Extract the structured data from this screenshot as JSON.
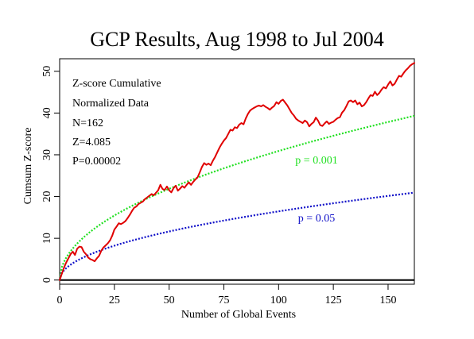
{
  "chart_data": {
    "type": "line",
    "title": "GCP Results, Aug 1998 to Jul 2004",
    "xlabel": "Number of Global Events",
    "ylabel": "Cumsum Z-score",
    "xlim": [
      0,
      162
    ],
    "ylim": [
      -1,
      53
    ],
    "x_ticks": [
      0,
      25,
      50,
      75,
      100,
      125,
      150
    ],
    "y_ticks": [
      0,
      10,
      20,
      30,
      40,
      50
    ],
    "grid": false,
    "annotations": [
      "Z-score Cumulative",
      "Normalized Data",
      "N=162",
      "Z=4.085",
      "P=0.00002"
    ],
    "series": [
      {
        "name": "",
        "color": "#e00000",
        "points": [
          [
            0,
            0
          ],
          [
            1,
            1.5
          ],
          [
            2,
            3
          ],
          [
            3,
            4.2
          ],
          [
            4,
            5.2
          ],
          [
            5,
            6.2
          ],
          [
            6,
            6.8
          ],
          [
            7,
            6.0
          ],
          [
            8,
            7.5
          ],
          [
            9,
            8.0
          ],
          [
            10,
            7.9
          ],
          [
            11,
            6.8
          ],
          [
            12,
            6.2
          ],
          [
            13,
            5.4
          ],
          [
            14,
            5.0
          ],
          [
            15,
            4.8
          ],
          [
            16,
            4.5
          ],
          [
            17,
            5.2
          ],
          [
            18,
            5.8
          ],
          [
            19,
            7.0
          ],
          [
            20,
            7.8
          ],
          [
            21,
            8.3
          ],
          [
            22,
            8.8
          ],
          [
            23,
            9.5
          ],
          [
            24,
            10.6
          ],
          [
            25,
            12.1
          ],
          [
            26,
            12.8
          ],
          [
            27,
            13.6
          ],
          [
            28,
            13.4
          ],
          [
            29,
            13.7
          ],
          [
            30,
            14.1
          ],
          [
            31,
            14.8
          ],
          [
            32,
            15.6
          ],
          [
            33,
            16.5
          ],
          [
            34,
            17.3
          ],
          [
            35,
            17.6
          ],
          [
            36,
            18.2
          ],
          [
            37,
            18.5
          ],
          [
            38,
            18.8
          ],
          [
            39,
            19.4
          ],
          [
            40,
            19.8
          ],
          [
            41,
            20.2
          ],
          [
            42,
            20.6
          ],
          [
            43,
            20.3
          ],
          [
            44,
            20.9
          ],
          [
            45,
            21.5
          ],
          [
            46,
            22.8
          ],
          [
            47,
            21.8
          ],
          [
            48,
            21.6
          ],
          [
            49,
            22.4
          ],
          [
            50,
            21.5
          ],
          [
            51,
            21.0
          ],
          [
            52,
            22.0
          ],
          [
            53,
            22.6
          ],
          [
            54,
            21.4
          ],
          [
            55,
            21.9
          ],
          [
            56,
            22.5
          ],
          [
            57,
            22.1
          ],
          [
            58,
            22.8
          ],
          [
            59,
            23.4
          ],
          [
            60,
            22.8
          ],
          [
            61,
            23.5
          ],
          [
            62,
            24.1
          ],
          [
            63,
            24.6
          ],
          [
            64,
            25.8
          ],
          [
            65,
            27.1
          ],
          [
            66,
            28.0
          ],
          [
            67,
            27.6
          ],
          [
            68,
            27.9
          ],
          [
            69,
            27.5
          ],
          [
            70,
            28.6
          ],
          [
            71,
            29.5
          ],
          [
            72,
            30.6
          ],
          [
            73,
            31.7
          ],
          [
            74,
            32.6
          ],
          [
            75,
            33.4
          ],
          [
            76,
            34.0
          ],
          [
            77,
            35.0
          ],
          [
            78,
            36.0
          ],
          [
            79,
            35.8
          ],
          [
            80,
            36.6
          ],
          [
            81,
            36.4
          ],
          [
            82,
            37.2
          ],
          [
            83,
            37.6
          ],
          [
            84,
            37.3
          ],
          [
            85,
            38.7
          ],
          [
            86,
            39.8
          ],
          [
            87,
            40.6
          ],
          [
            88,
            41.0
          ],
          [
            89,
            41.3
          ],
          [
            90,
            41.6
          ],
          [
            91,
            41.8
          ],
          [
            92,
            41.6
          ],
          [
            93,
            41.9
          ],
          [
            94,
            41.5
          ],
          [
            95,
            41.2
          ],
          [
            96,
            40.8
          ],
          [
            97,
            41.3
          ],
          [
            98,
            41.7
          ],
          [
            99,
            42.6
          ],
          [
            100,
            42.2
          ],
          [
            101,
            42.9
          ],
          [
            102,
            43.2
          ],
          [
            103,
            42.5
          ],
          [
            104,
            41.8
          ],
          [
            105,
            40.9
          ],
          [
            106,
            40.0
          ],
          [
            107,
            39.4
          ],
          [
            108,
            38.6
          ],
          [
            109,
            38.2
          ],
          [
            110,
            37.9
          ],
          [
            111,
            37.6
          ],
          [
            112,
            38.2
          ],
          [
            113,
            37.8
          ],
          [
            114,
            36.8
          ],
          [
            115,
            37.4
          ],
          [
            116,
            37.8
          ],
          [
            117,
            38.9
          ],
          [
            118,
            38.2
          ],
          [
            119,
            37.1
          ],
          [
            120,
            36.9
          ],
          [
            121,
            37.5
          ],
          [
            122,
            38.0
          ],
          [
            123,
            37.4
          ],
          [
            124,
            37.7
          ],
          [
            125,
            37.9
          ],
          [
            126,
            38.4
          ],
          [
            127,
            38.8
          ],
          [
            128,
            39.0
          ],
          [
            129,
            40.1
          ],
          [
            130,
            40.7
          ],
          [
            131,
            41.7
          ],
          [
            132,
            42.8
          ],
          [
            133,
            43.0
          ],
          [
            134,
            42.6
          ],
          [
            135,
            43.0
          ],
          [
            136,
            42.1
          ],
          [
            137,
            42.5
          ],
          [
            138,
            41.6
          ],
          [
            139,
            41.9
          ],
          [
            140,
            42.6
          ],
          [
            141,
            43.5
          ],
          [
            142,
            44.3
          ],
          [
            143,
            44.1
          ],
          [
            144,
            45.1
          ],
          [
            145,
            44.3
          ],
          [
            146,
            44.8
          ],
          [
            147,
            45.6
          ],
          [
            148,
            46.2
          ],
          [
            149,
            45.9
          ],
          [
            150,
            46.8
          ],
          [
            151,
            47.6
          ],
          [
            152,
            46.6
          ],
          [
            153,
            47.0
          ],
          [
            154,
            48.0
          ],
          [
            155,
            48.9
          ],
          [
            156,
            48.7
          ],
          [
            157,
            49.5
          ],
          [
            158,
            50.2
          ],
          [
            159,
            50.7
          ],
          [
            160,
            51.3
          ],
          [
            161,
            51.7
          ],
          [
            162,
            52.0
          ]
        ]
      },
      {
        "name": "p = 0.001",
        "color": "#22e022",
        "curve": "sqrt",
        "coefficient": 3.0902,
        "label": "p = 0.001"
      },
      {
        "name": "p = 0.05",
        "color": "#1010c8",
        "curve": "sqrt",
        "coefficient": 1.6449,
        "label": "p = 0.05"
      }
    ]
  }
}
